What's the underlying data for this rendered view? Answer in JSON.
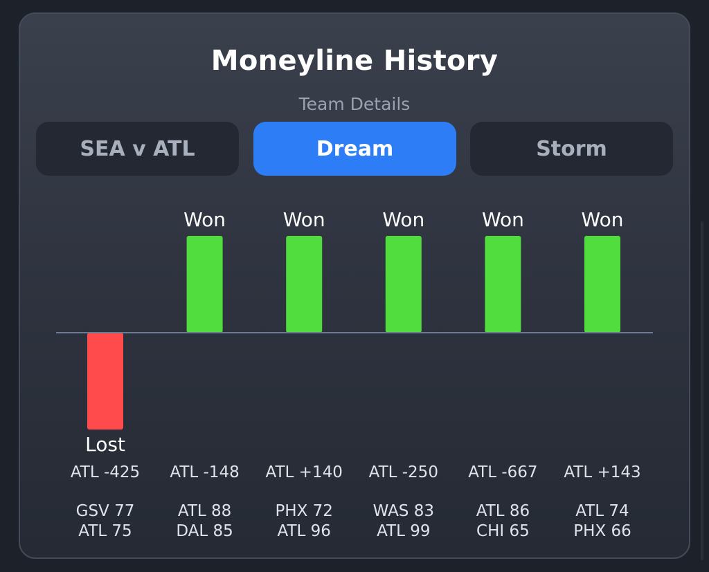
{
  "header": {
    "title": "Moneyline History",
    "subtitle": "Team Details"
  },
  "tabs": [
    {
      "label": "SEA v ATL",
      "active": false
    },
    {
      "label": "Dream",
      "active": true
    },
    {
      "label": "Storm",
      "active": false
    }
  ],
  "colors": {
    "won": "#52dd3e",
    "lost": "#ff4b4b",
    "active_tab": "#2c7df6",
    "baseline": "#6f7a90"
  },
  "chart_data": {
    "type": "bar",
    "categories": [
      "ATL -425",
      "ATL -148",
      "ATL +140",
      "ATL -250",
      "ATL -667",
      "ATL +143"
    ],
    "values": [
      -1,
      1,
      1,
      1,
      1,
      1
    ],
    "results": [
      "Lost",
      "Won",
      "Won",
      "Won",
      "Won",
      "Won"
    ],
    "scores": [
      [
        "GSV 77",
        "ATL 75"
      ],
      [
        "ATL 88",
        "DAL 85"
      ],
      [
        "PHX 72",
        "ATL 96"
      ],
      [
        "WAS 83",
        "ATL 99"
      ],
      [
        "ATL 86",
        "CHI 65"
      ],
      [
        "ATL 74",
        "PHX 66"
      ]
    ],
    "ylim": [
      -1,
      1
    ]
  }
}
